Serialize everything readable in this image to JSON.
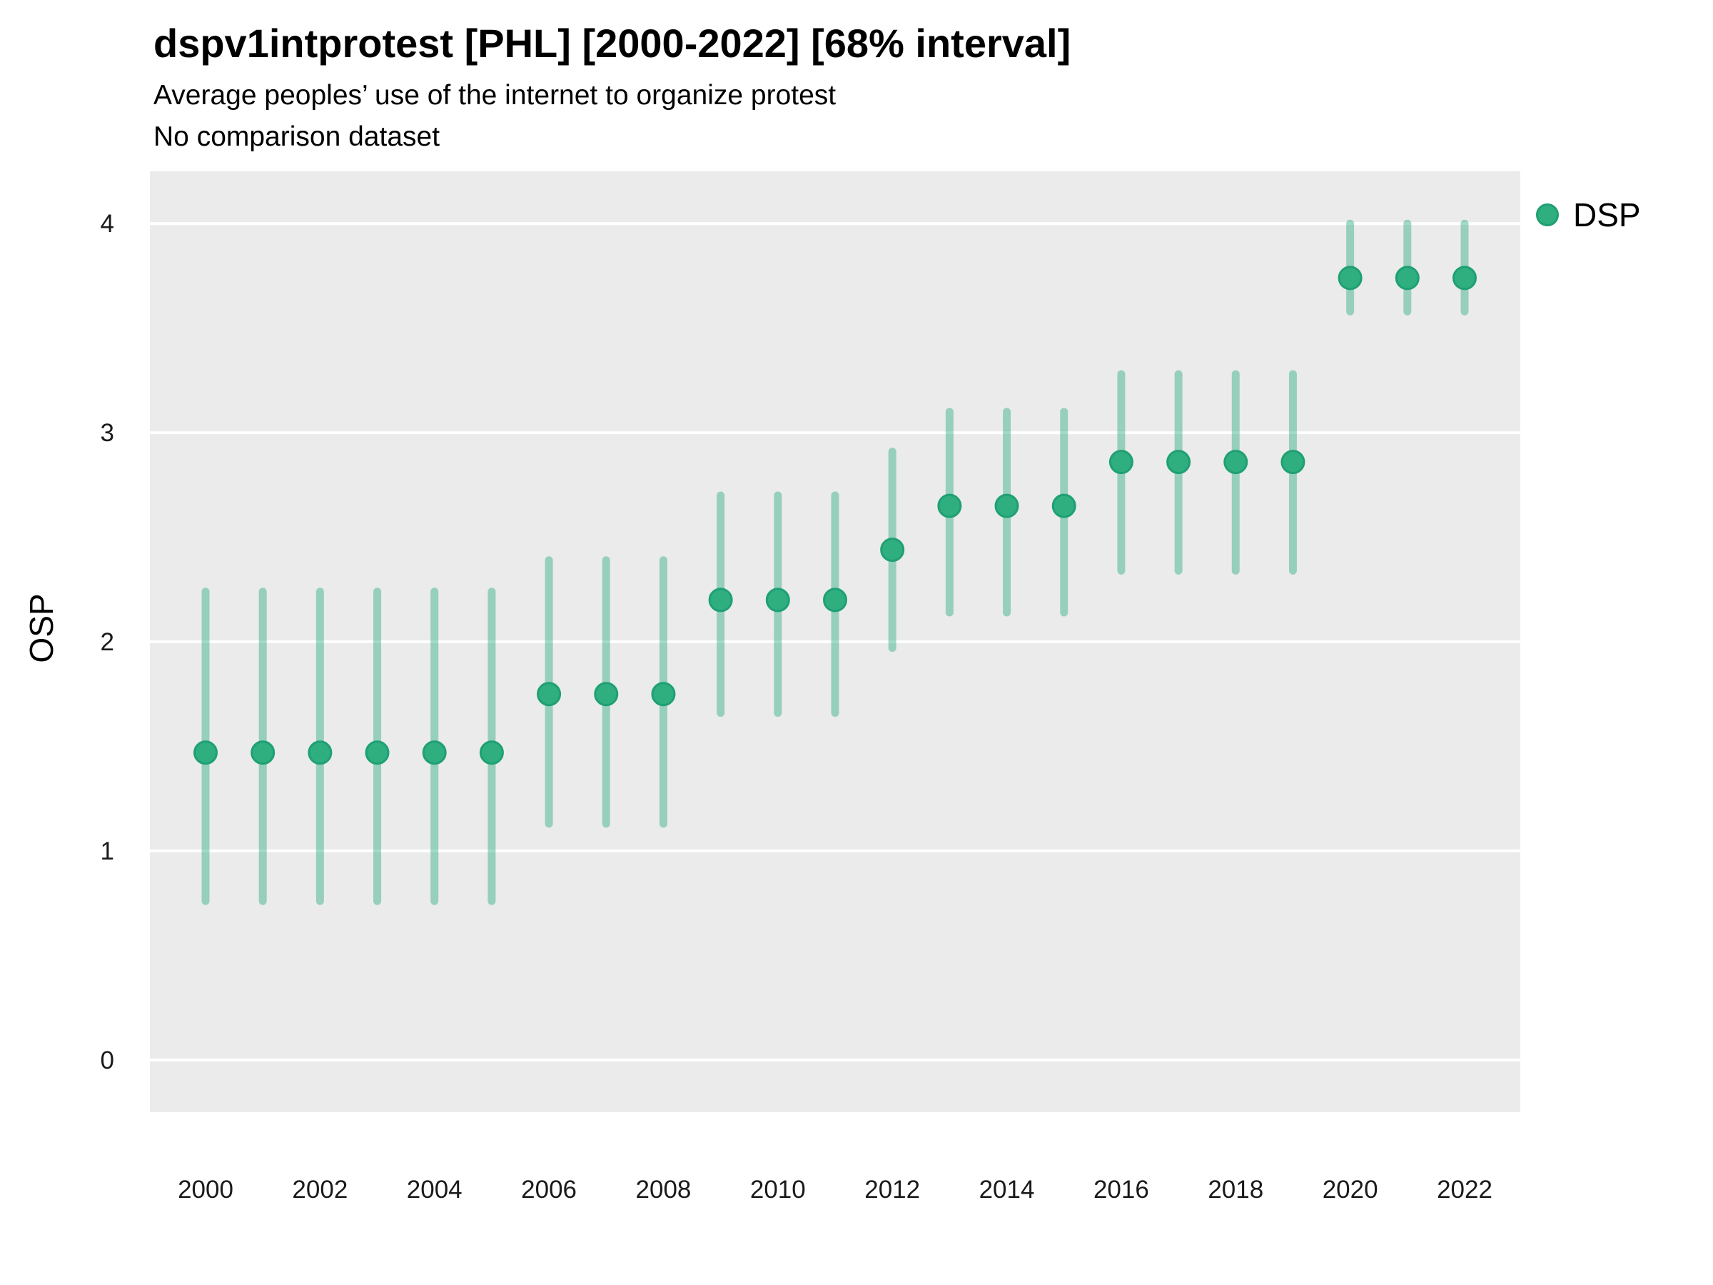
{
  "header": {
    "title": "dspv1intprotest [PHL] [2000-2022] [68% interval]",
    "subtitle": "Average peoples’ use of the internet to organize protest",
    "note": "No comparison dataset"
  },
  "axes": {
    "y_label": "OSP"
  },
  "legend": {
    "label": "DSP"
  },
  "colors": {
    "point": "#2fae80",
    "point_stroke": "#1fa073",
    "interval": "#2fae80",
    "interval_opacity": 0.45,
    "panel_background": "#ebebeb",
    "gridline": "#ffffff",
    "text": "#1a1a1a"
  },
  "chart_data": {
    "type": "scatter",
    "subtype": "pointrange",
    "title": "dspv1intprotest [PHL] [2000-2022] [68% interval]",
    "subtitle": "Average peoples’ use of the internet to organize protest",
    "note": "No comparison dataset",
    "xlabel": "",
    "ylabel": "OSP",
    "interval_level": "68%",
    "ylim": [
      -0.25,
      4.25
    ],
    "yticks": [
      0,
      1,
      2,
      3,
      4
    ],
    "xticks": [
      2000,
      2002,
      2004,
      2006,
      2008,
      2010,
      2012,
      2014,
      2016,
      2018,
      2020,
      2022
    ],
    "grid": "major-horizontal-only",
    "legend_position": "right",
    "x": [
      2000,
      2001,
      2002,
      2003,
      2004,
      2005,
      2006,
      2007,
      2008,
      2009,
      2010,
      2011,
      2012,
      2013,
      2014,
      2015,
      2016,
      2017,
      2018,
      2019,
      2020,
      2021,
      2022
    ],
    "series": [
      {
        "name": "DSP",
        "y": [
          1.47,
          1.47,
          1.47,
          1.47,
          1.47,
          1.47,
          1.75,
          1.75,
          1.75,
          2.2,
          2.2,
          2.2,
          2.44,
          2.65,
          2.65,
          2.65,
          2.86,
          2.86,
          2.86,
          2.86,
          3.74,
          3.74,
          3.74
        ],
        "lo": [
          0.76,
          0.76,
          0.76,
          0.76,
          0.76,
          0.76,
          1.13,
          1.13,
          1.13,
          1.66,
          1.66,
          1.66,
          1.97,
          2.14,
          2.14,
          2.14,
          2.34,
          2.34,
          2.34,
          2.34,
          3.58,
          3.58,
          3.58
        ],
        "hi": [
          2.24,
          2.24,
          2.24,
          2.24,
          2.24,
          2.24,
          2.39,
          2.39,
          2.39,
          2.7,
          2.7,
          2.7,
          2.91,
          3.1,
          3.1,
          3.1,
          3.28,
          3.28,
          3.28,
          3.28,
          4.0,
          4.0,
          4.0
        ]
      }
    ]
  }
}
